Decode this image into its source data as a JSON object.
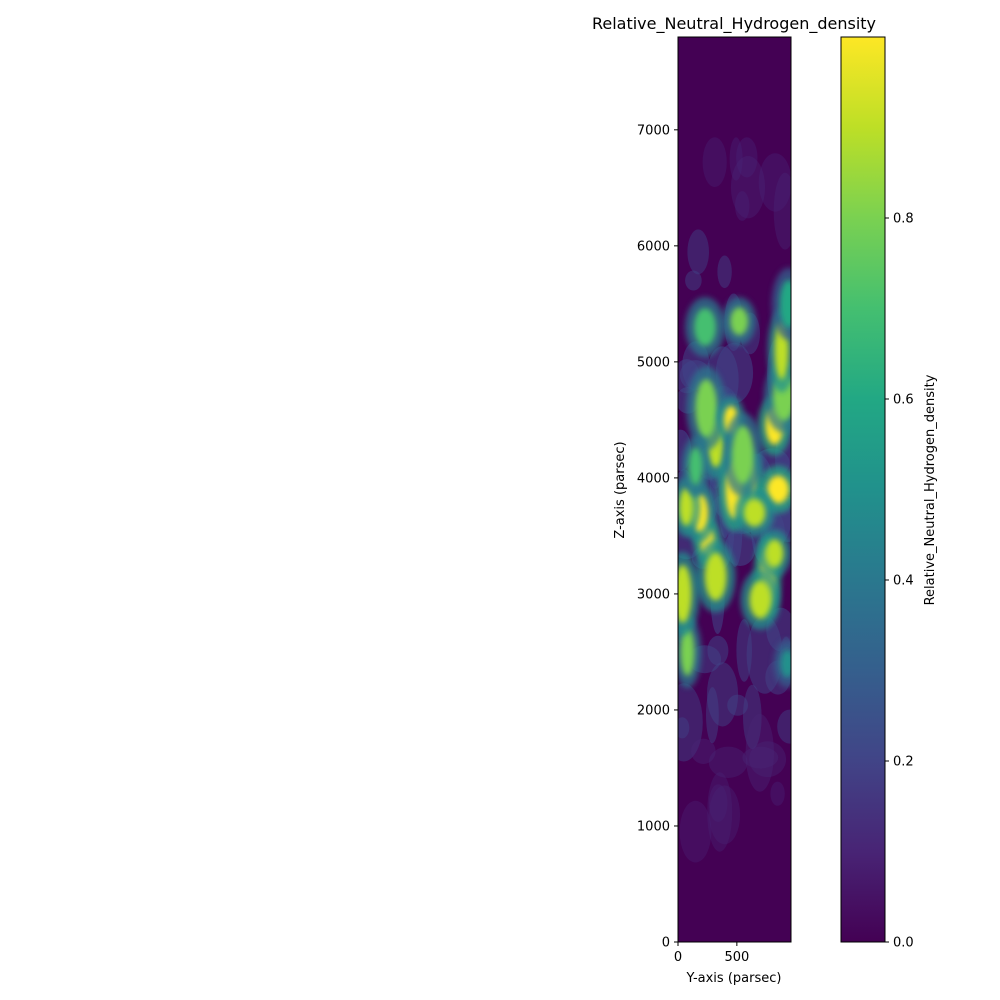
{
  "chart_data": {
    "type": "heatmap",
    "title": "Relative_Neutral_Hydrogen_density",
    "xlabel": "Y-axis (parsec)",
    "ylabel": "Z-axis (parsec)",
    "xlim": [
      0,
      960
    ],
    "ylim": [
      0,
      7800
    ],
    "xticks": [
      "0",
      "500"
    ],
    "yticks": [
      "0",
      "1000",
      "2000",
      "3000",
      "4000",
      "5000",
      "6000",
      "7000"
    ],
    "colorbar": {
      "label": "Relative_Neutral_Hydrogen_density",
      "colormap": "viridis",
      "range": [
        0,
        1
      ],
      "ticks": [
        "0.0",
        "0.2",
        "0.4",
        "0.6",
        "0.8"
      ]
    },
    "features": [
      {
        "y": 250,
        "z": 3450,
        "value": 1.0
      },
      {
        "y": 180,
        "z": 3700,
        "value": 0.95
      },
      {
        "y": 320,
        "z": 3150,
        "value": 0.9
      },
      {
        "y": 760,
        "z": 3150,
        "value": 1.0
      },
      {
        "y": 820,
        "z": 3350,
        "value": 0.9
      },
      {
        "y": 700,
        "z": 2950,
        "value": 0.85
      },
      {
        "y": 600,
        "z": 3950,
        "value": 1.0
      },
      {
        "y": 480,
        "z": 3900,
        "value": 1.0
      },
      {
        "y": 850,
        "z": 3900,
        "value": 1.0
      },
      {
        "y": 70,
        "z": 3750,
        "value": 0.85
      },
      {
        "y": 320,
        "z": 4300,
        "value": 0.9
      },
      {
        "y": 240,
        "z": 4600,
        "value": 0.8
      },
      {
        "y": 450,
        "z": 4500,
        "value": 0.95
      },
      {
        "y": 820,
        "z": 4450,
        "value": 1.0
      },
      {
        "y": 900,
        "z": 4700,
        "value": 0.8
      },
      {
        "y": 880,
        "z": 5100,
        "value": 0.9
      },
      {
        "y": 520,
        "z": 5350,
        "value": 0.8
      },
      {
        "y": 230,
        "z": 5300,
        "value": 0.7
      },
      {
        "y": 80,
        "z": 2500,
        "value": 0.75
      },
      {
        "y": 40,
        "z": 3000,
        "value": 0.85
      },
      {
        "y": 650,
        "z": 3700,
        "value": 0.85
      },
      {
        "y": 150,
        "z": 4100,
        "value": 0.7
      },
      {
        "y": 940,
        "z": 5500,
        "value": 0.6
      },
      {
        "y": 550,
        "z": 4200,
        "value": 0.75
      },
      {
        "y": 930,
        "z": 2400,
        "value": 0.5
      }
    ]
  }
}
